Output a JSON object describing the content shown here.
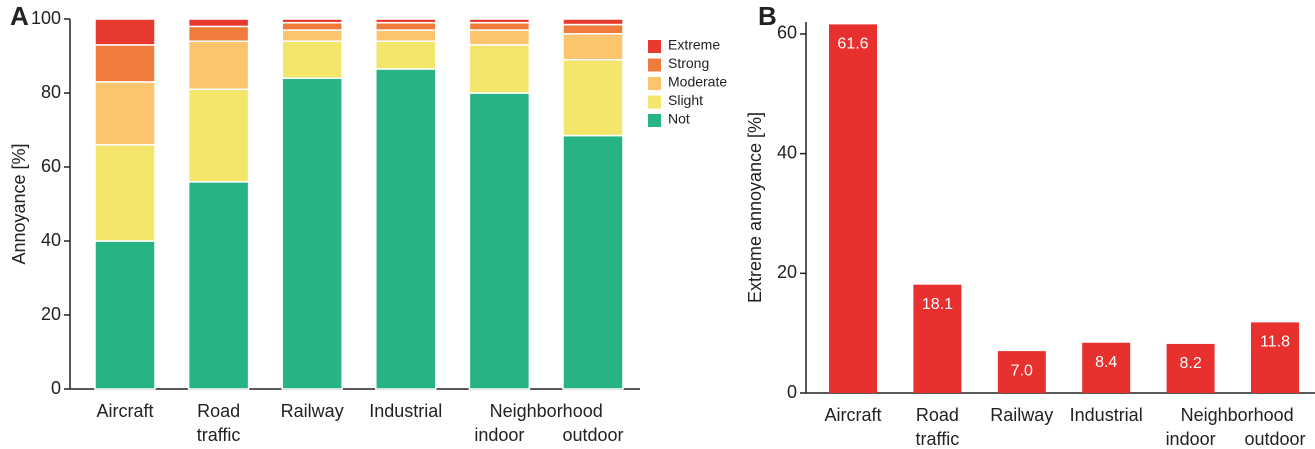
{
  "chart_data": [
    {
      "type": "stacked_bar",
      "panel_label": "A",
      "y_label": "Annoyance [%]",
      "categories": [
        "Aircraft",
        "Road traffic",
        "Railway",
        "Industrial",
        "indoor",
        "outdoor"
      ],
      "category_group": "Neighborhood",
      "series": [
        {
          "name": "Not",
          "color": "#27b383",
          "values": [
            40,
            56,
            84,
            86.5,
            80,
            68.5
          ]
        },
        {
          "name": "Slight",
          "color": "#f3e66a",
          "values": [
            26,
            25,
            10,
            7.5,
            13,
            20.5
          ]
        },
        {
          "name": "Moderate",
          "color": "#fbc46d",
          "values": [
            17,
            13,
            3,
            3,
            4,
            7
          ]
        },
        {
          "name": "Strong",
          "color": "#f07c3b",
          "values": [
            10,
            4,
            2,
            2,
            2,
            2.5
          ]
        },
        {
          "name": "Extreme",
          "color": "#e8392e",
          "values": [
            7,
            2,
            1,
            1,
            1,
            1.5
          ]
        }
      ],
      "ylim": [
        0,
        100
      ],
      "yticks": [
        0,
        20,
        40,
        60,
        80,
        100
      ],
      "grid": false,
      "legend": "right"
    },
    {
      "type": "bar",
      "panel_label": "B",
      "y_label": "Extreme annoyance [%]",
      "categories": [
        "Aircraft",
        "Road traffic",
        "Railway",
        "Industrial",
        "indoor",
        "outdoor"
      ],
      "category_group": "Neighborhood",
      "values": [
        61.6,
        18.1,
        7.0,
        8.4,
        8.2,
        11.8
      ],
      "value_labels": [
        "61.6",
        "18.1",
        "7.0",
        "8.4",
        "8.2",
        "11.8"
      ],
      "color": "#e8302f",
      "ylim": [
        0,
        62
      ],
      "yticks": [
        0,
        20,
        40,
        60
      ],
      "grid": false
    }
  ]
}
